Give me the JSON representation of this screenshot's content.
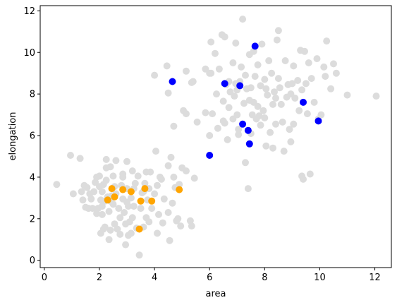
{
  "chart_data": {
    "type": "scatter",
    "title": "",
    "xlabel": "area",
    "ylabel": "elongation",
    "xlim": [
      -0.15,
      12.6
    ],
    "ylim": [
      -0.35,
      12.25
    ],
    "xticks": [
      0,
      2,
      4,
      6,
      8,
      10,
      12
    ],
    "yticks": [
      0,
      2,
      4,
      6,
      8,
      10,
      12
    ],
    "grid": false,
    "colors": {
      "background_points": "#dcdcdc",
      "blue_points": "#0000ff",
      "orange_points": "#ffa500",
      "axes": "#000000"
    },
    "series": [
      {
        "color": "#dcdcdc",
        "points": [
          [
            0.45,
            3.65
          ],
          [
            0.95,
            5.05
          ],
          [
            1.05,
            3.2
          ],
          [
            1.3,
            4.9
          ],
          [
            1.35,
            3.3
          ],
          [
            1.4,
            2.9
          ],
          [
            1.45,
            3.6
          ],
          [
            1.55,
            3.5
          ],
          [
            1.6,
            2.5
          ],
          [
            1.65,
            3.2
          ],
          [
            1.75,
            2.5
          ],
          [
            1.8,
            3.3
          ],
          [
            1.85,
            3.75
          ],
          [
            1.9,
            4.0
          ],
          [
            1.95,
            2.5
          ],
          [
            2.0,
            4.05
          ],
          [
            2.0,
            3.55
          ],
          [
            2.05,
            2.9
          ],
          [
            2.1,
            3.3
          ],
          [
            2.1,
            2.6
          ],
          [
            2.15,
            1.5
          ],
          [
            2.2,
            1.6
          ],
          [
            2.25,
            4.85
          ],
          [
            2.25,
            3.85
          ],
          [
            2.3,
            3.05
          ],
          [
            2.35,
            2.35
          ],
          [
            2.35,
            1.0
          ],
          [
            2.4,
            4.5
          ],
          [
            2.4,
            1.45
          ],
          [
            2.45,
            3.1
          ],
          [
            2.5,
            2.7
          ],
          [
            2.5,
            4.05
          ],
          [
            2.55,
            1.75
          ],
          [
            2.6,
            4.8
          ],
          [
            2.6,
            3.2
          ],
          [
            2.65,
            1.5
          ],
          [
            2.7,
            2.5
          ],
          [
            2.75,
            2.05
          ],
          [
            2.75,
            1.25
          ],
          [
            2.8,
            3.6
          ],
          [
            2.85,
            4.15
          ],
          [
            2.85,
            2.95
          ],
          [
            2.9,
            2.3
          ],
          [
            2.95,
            1.75
          ],
          [
            3.0,
            4.75
          ],
          [
            3.0,
            3.45
          ],
          [
            3.05,
            2.6
          ],
          [
            3.05,
            1.2
          ],
          [
            3.1,
            1.85
          ],
          [
            3.15,
            3.0
          ],
          [
            3.2,
            4.3
          ],
          [
            3.2,
            2.05
          ],
          [
            3.25,
            2.6
          ],
          [
            3.3,
            3.7
          ],
          [
            3.35,
            1.55
          ],
          [
            3.4,
            4.05
          ],
          [
            3.45,
            0.25
          ],
          [
            3.5,
            2.5
          ],
          [
            3.55,
            3.25
          ],
          [
            3.6,
            1.6
          ],
          [
            3.65,
            3.7
          ],
          [
            3.7,
            4.25
          ],
          [
            3.7,
            2.05
          ],
          [
            3.75,
            2.9
          ],
          [
            3.8,
            1.85
          ],
          [
            3.8,
            3.45
          ],
          [
            3.85,
            4.25
          ],
          [
            3.9,
            2.5
          ],
          [
            4.0,
            3.2
          ],
          [
            4.05,
            5.25
          ],
          [
            4.1,
            3.6
          ],
          [
            4.15,
            2.2
          ],
          [
            4.2,
            4.0
          ],
          [
            4.25,
            3.9
          ],
          [
            4.3,
            1.8
          ],
          [
            4.35,
            2.95
          ],
          [
            4.5,
            4.55
          ],
          [
            4.55,
            0.95
          ],
          [
            4.6,
            4.95
          ],
          [
            4.65,
            2.75
          ],
          [
            4.7,
            4.0
          ],
          [
            4.75,
            3.5
          ],
          [
            4.8,
            1.9
          ],
          [
            4.85,
            2.0
          ],
          [
            4.9,
            3.65
          ],
          [
            4.95,
            1.65
          ],
          [
            5.0,
            4.45
          ],
          [
            5.15,
            4.3
          ],
          [
            5.3,
            1.9
          ],
          [
            5.35,
            1.65
          ],
          [
            5.45,
            3.95
          ],
          [
            2.1,
            2.2
          ],
          [
            2.4,
            2.85
          ],
          [
            1.7,
            2.95
          ],
          [
            2.25,
            4.45
          ],
          [
            2.35,
            3.0
          ],
          [
            1.9,
            2.25
          ],
          [
            3.6,
            3.3
          ],
          [
            2.95,
            0.75
          ],
          [
            2.85,
            4.0
          ],
          [
            2.55,
            3.55
          ],
          [
            2.2,
            2.85
          ],
          [
            3.25,
            3.45
          ],
          [
            3.15,
            1.3
          ],
          [
            4.5,
            2.3
          ],
          [
            4.1,
            1.3
          ],
          [
            1.5,
            2.55
          ],
          [
            2.15,
            3.65
          ],
          [
            2.05,
            1.3
          ],
          [
            3.0,
            2.8
          ],
          [
            4.0,
            8.9
          ],
          [
            4.45,
            9.35
          ],
          [
            4.5,
            8.05
          ],
          [
            4.7,
            6.45
          ],
          [
            5.05,
            7.2
          ],
          [
            5.15,
            7.05
          ],
          [
            5.35,
            8.55
          ],
          [
            5.4,
            8.6
          ],
          [
            5.55,
            6.65
          ],
          [
            5.85,
            9.2
          ],
          [
            5.85,
            7.1
          ],
          [
            6.0,
            9.0
          ],
          [
            6.0,
            6.0
          ],
          [
            6.05,
            10.5
          ],
          [
            6.1,
            7.05
          ],
          [
            6.2,
            9.95
          ],
          [
            6.25,
            8.0
          ],
          [
            6.3,
            6.35
          ],
          [
            6.35,
            9.2
          ],
          [
            6.5,
            7.65
          ],
          [
            6.55,
            6.6
          ],
          [
            6.6,
            8.45
          ],
          [
            6.65,
            5.8
          ],
          [
            6.7,
            7.35
          ],
          [
            6.75,
            8.1
          ],
          [
            6.85,
            9.5
          ],
          [
            6.9,
            7.9
          ],
          [
            6.95,
            10.45
          ],
          [
            7.0,
            7.0
          ],
          [
            7.05,
            6.05
          ],
          [
            7.1,
            8.6
          ],
          [
            7.15,
            9.3
          ],
          [
            7.2,
            11.6
          ],
          [
            7.25,
            7.55
          ],
          [
            7.3,
            4.7
          ],
          [
            7.35,
            8.25
          ],
          [
            7.4,
            3.45
          ],
          [
            7.45,
            7.7
          ],
          [
            7.5,
            6.1
          ],
          [
            7.55,
            7.0
          ],
          [
            7.6,
            10.05
          ],
          [
            7.65,
            8.85
          ],
          [
            7.7,
            6.8
          ],
          [
            7.75,
            9.4
          ],
          [
            7.8,
            6.95
          ],
          [
            7.85,
            8.4
          ],
          [
            7.9,
            10.4
          ],
          [
            7.95,
            7.2
          ],
          [
            8.0,
            8.7
          ],
          [
            8.05,
            5.5
          ],
          [
            8.1,
            7.95
          ],
          [
            8.2,
            6.15
          ],
          [
            8.25,
            9.0
          ],
          [
            8.3,
            7.5
          ],
          [
            8.35,
            8.1
          ],
          [
            8.4,
            6.55
          ],
          [
            8.45,
            10.6
          ],
          [
            8.5,
            11.05
          ],
          [
            8.55,
            8.3
          ],
          [
            8.6,
            7.5
          ],
          [
            8.65,
            6.65
          ],
          [
            8.7,
            5.25
          ],
          [
            8.75,
            9.6
          ],
          [
            8.8,
            7.85
          ],
          [
            8.85,
            8.45
          ],
          [
            8.9,
            6.3
          ],
          [
            8.95,
            5.7
          ],
          [
            9.0,
            8.5
          ],
          [
            9.05,
            9.35
          ],
          [
            9.1,
            7.8
          ],
          [
            9.2,
            8.65
          ],
          [
            9.25,
            7.2
          ],
          [
            9.3,
            10.1
          ],
          [
            9.35,
            4.05
          ],
          [
            9.4,
            3.9
          ],
          [
            9.45,
            10.05
          ],
          [
            9.5,
            8.5
          ],
          [
            9.55,
            7.05
          ],
          [
            9.6,
            9.5
          ],
          [
            9.65,
            4.15
          ],
          [
            9.7,
            8.75
          ],
          [
            9.8,
            7.6
          ],
          [
            9.9,
            9.7
          ],
          [
            9.95,
            6.8
          ],
          [
            10.05,
            7.0
          ],
          [
            10.15,
            9.3
          ],
          [
            10.2,
            8.85
          ],
          [
            10.25,
            10.55
          ],
          [
            10.4,
            8.25
          ],
          [
            10.5,
            9.45
          ],
          [
            10.6,
            9.0
          ],
          [
            11.0,
            7.95
          ],
          [
            12.05,
            7.9
          ],
          [
            5.15,
            9.1
          ],
          [
            6.05,
            9.0
          ],
          [
            6.45,
            10.85
          ],
          [
            6.55,
            10.75
          ],
          [
            6.95,
            8.5
          ],
          [
            7.0,
            8.2
          ],
          [
            7.45,
            9.9
          ],
          [
            7.3,
            8.9
          ],
          [
            7.75,
            7.4
          ],
          [
            7.85,
            6.5
          ],
          [
            8.0,
            6.85
          ],
          [
            8.15,
            9.6
          ],
          [
            8.3,
            5.4
          ],
          [
            8.5,
            8.75
          ],
          [
            8.95,
            8.0
          ],
          [
            9.05,
            6.55
          ],
          [
            9.35,
            8.2
          ],
          [
            6.85,
            6.8
          ],
          [
            7.6,
            7.6
          ],
          [
            8.4,
            7.8
          ],
          [
            6.5,
            6.7
          ],
          [
            7.05,
            6.3
          ],
          [
            6.7,
            8.6
          ],
          [
            7.5,
            8.3
          ],
          [
            8.05,
            8.25
          ]
        ]
      },
      {
        "color": "#0000ff",
        "points": [
          [
            4.65,
            8.6
          ],
          [
            6.0,
            5.05
          ],
          [
            6.55,
            8.5
          ],
          [
            7.1,
            8.4
          ],
          [
            7.2,
            6.55
          ],
          [
            7.4,
            6.25
          ],
          [
            7.45,
            5.6
          ],
          [
            7.65,
            10.3
          ],
          [
            9.4,
            7.6
          ],
          [
            9.95,
            6.7
          ]
        ]
      },
      {
        "color": "#ffa500",
        "points": [
          [
            2.3,
            2.9
          ],
          [
            2.45,
            3.45
          ],
          [
            2.55,
            3.05
          ],
          [
            2.85,
            3.4
          ],
          [
            3.15,
            3.3
          ],
          [
            3.45,
            1.5
          ],
          [
            3.5,
            2.85
          ],
          [
            3.65,
            3.45
          ],
          [
            3.9,
            2.85
          ],
          [
            4.9,
            3.4
          ]
        ]
      }
    ]
  }
}
